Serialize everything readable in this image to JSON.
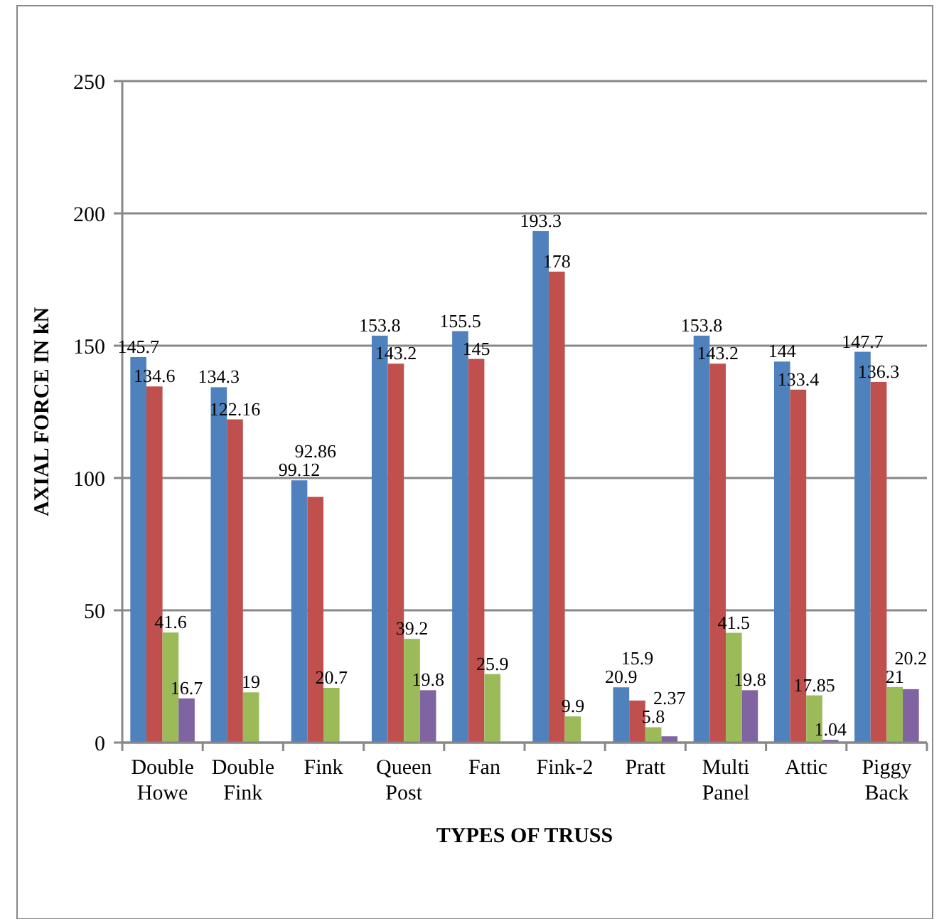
{
  "chart_data": {
    "type": "bar",
    "xlabel": "TYPES OF TRUSS",
    "ylabel": "AXIAL FORCE IN kN",
    "categories": [
      "Double Howe",
      "Double Fink",
      "Fink",
      "Queen Post",
      "Fan",
      "Fink-2",
      "Pratt",
      "Multi Panel",
      "Attic",
      "Piggy Back"
    ],
    "series": [
      {
        "color": "#4f81bd",
        "values": [
          145.7,
          134.3,
          99.12,
          153.8,
          155.5,
          193.3,
          20.9,
          153.8,
          144,
          147.7
        ]
      },
      {
        "color": "#c0504d",
        "values": [
          134.6,
          122.16,
          92.86,
          143.2,
          145,
          178,
          15.9,
          143.2,
          133.4,
          136.3
        ]
      },
      {
        "color": "#9bbb59",
        "values": [
          41.6,
          19,
          20.7,
          39.2,
          25.9,
          9.9,
          5.8,
          41.5,
          17.85,
          21
        ]
      },
      {
        "color": "#8064a2",
        "values": [
          16.7,
          null,
          null,
          19.8,
          null,
          null,
          2.37,
          19.8,
          1.04,
          20.2
        ]
      }
    ],
    "ylim": [
      0,
      250
    ],
    "yticks": [
      0,
      50,
      100,
      150,
      200,
      250
    ],
    "grid": "y",
    "data_labels": true
  }
}
